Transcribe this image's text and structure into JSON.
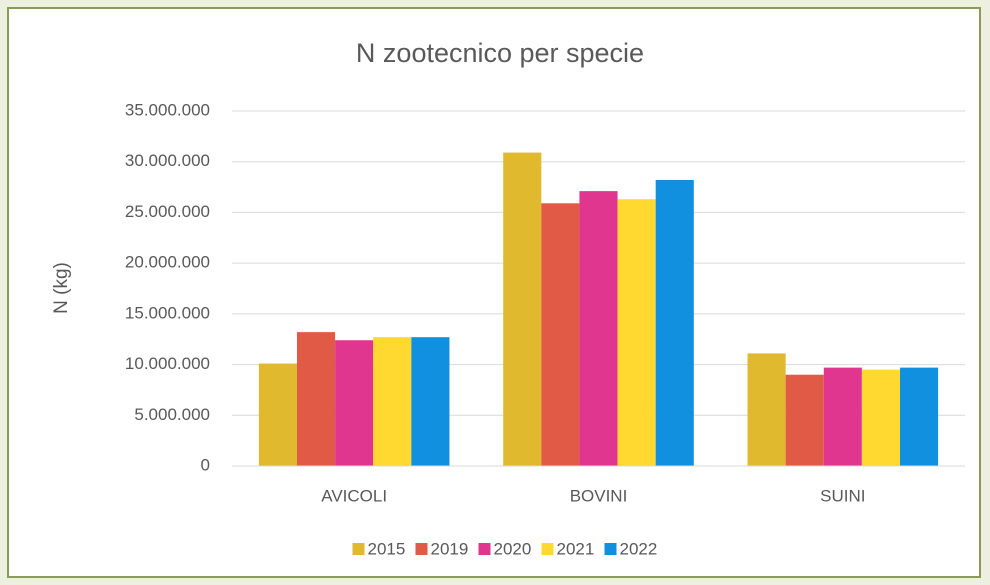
{
  "chart_data": {
    "type": "bar",
    "title": "N zootecnico per specie",
    "y_label": "N (kg)",
    "categories": [
      "AVICOLI",
      "BOVINI",
      "SUINI"
    ],
    "series": [
      {
        "name": "2015",
        "color": "#e0b92f",
        "values": [
          10100000,
          30900000,
          11100000
        ]
      },
      {
        "name": "2019",
        "color": "#e05a45",
        "values": [
          13200000,
          25900000,
          9000000
        ]
      },
      {
        "name": "2020",
        "color": "#e0368f",
        "values": [
          12400000,
          27100000,
          9700000
        ]
      },
      {
        "name": "2021",
        "color": "#ffd92f",
        "values": [
          12700000,
          26300000,
          9500000
        ]
      },
      {
        "name": "2022",
        "color": "#1190e0",
        "values": [
          12700000,
          28200000,
          9700000
        ]
      }
    ],
    "ylim": [
      0,
      35000000
    ],
    "yticks": [
      0,
      {
        "value": 5000000,
        "label": "5.000.000"
      },
      {
        "value": 10000000,
        "label": "10.000.000"
      },
      {
        "value": 15000000,
        "label": "15.000.000"
      },
      {
        "value": 20000000,
        "label": "20.000.000"
      },
      {
        "value": 25000000,
        "label": "25.000.000"
      },
      {
        "value": 30000000,
        "label": "30.000.000"
      },
      {
        "value": 35000000,
        "label": "35.000.000"
      }
    ],
    "grid": true,
    "legend": "bottom"
  }
}
